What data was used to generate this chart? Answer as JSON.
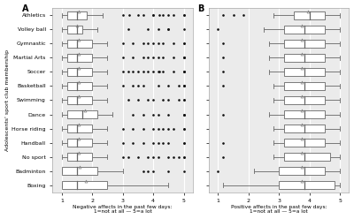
{
  "panel_A_label": "A",
  "panel_B_label": "B",
  "title_A": "Negative affects in the past few days:\n1=not at all — 5=a lot",
  "title_B": "Positive affects in the past few days:\n1=not at all — 5=a lot",
  "ylabel": "Adolescents' sport club membership",
  "xlim": [
    0.7,
    5.3
  ],
  "xticks": [
    1,
    2,
    3,
    4,
    5
  ],
  "background_color": "#ebebeb",
  "box_color": "white",
  "line_color": "#666666",
  "flier_color": "#111111",
  "mean_marker": "^",
  "mean_color": "#888888",
  "A_sports": [
    "Athletics",
    "Volley ball",
    "Gymnastic",
    "Martial Arts",
    "Soccer",
    "Basketball",
    "Swimming",
    "Dance",
    "Horse riding",
    "Handball",
    "No sport",
    "Badminton",
    "Boxing"
  ],
  "A_boxes": [
    {
      "med": 1.5,
      "q1": 1.17,
      "q3": 1.83,
      "whislo": 1.0,
      "whishi": 2.33,
      "mean": 1.55,
      "fliers": [
        3.0,
        3.5,
        3.67,
        4.0,
        4.0,
        4.33,
        4.5,
        4.67,
        5.0,
        5.0,
        4.2,
        3.2
      ]
    },
    {
      "med": 1.5,
      "q1": 1.17,
      "q3": 1.67,
      "whislo": 1.0,
      "whishi": 2.17,
      "mean": 1.5,
      "fliers": [
        3.17,
        3.83,
        4.17,
        4.5,
        5.0,
        4.5
      ]
    },
    {
      "med": 1.5,
      "q1": 1.17,
      "q3": 2.0,
      "whislo": 1.0,
      "whishi": 2.5,
      "mean": 1.55,
      "fliers": [
        3.0,
        3.33,
        3.67,
        4.0,
        4.17,
        4.33,
        4.67,
        5.0,
        5.0,
        3.83
      ]
    },
    {
      "med": 1.5,
      "q1": 1.17,
      "q3": 2.0,
      "whislo": 1.0,
      "whishi": 2.5,
      "mean": 1.55,
      "fliers": [
        3.0,
        3.33,
        3.67,
        4.0,
        4.17,
        4.33,
        4.67,
        5.0,
        5.0,
        3.83,
        5.0
      ]
    },
    {
      "med": 1.5,
      "q1": 1.17,
      "q3": 2.0,
      "whislo": 1.0,
      "whishi": 2.5,
      "mean": 1.55,
      "fliers": [
        3.0,
        3.17,
        3.33,
        3.5,
        3.67,
        4.0,
        4.17,
        4.33,
        4.67,
        5.0,
        5.0,
        3.83,
        5.0,
        4.2
      ]
    },
    {
      "med": 1.5,
      "q1": 1.17,
      "q3": 2.0,
      "whislo": 1.0,
      "whishi": 2.5,
      "mean": 1.55,
      "fliers": [
        3.0,
        3.33,
        3.67,
        4.17,
        4.5,
        5.0,
        5.0,
        4.83,
        5.0,
        3.5
      ]
    },
    {
      "med": 1.5,
      "q1": 1.17,
      "q3": 2.0,
      "whislo": 1.0,
      "whishi": 2.5,
      "mean": 1.55,
      "fliers": [
        3.17,
        3.5,
        3.83,
        4.0,
        4.33,
        4.5,
        5.0,
        5.0,
        4.83
      ]
    },
    {
      "med": 1.67,
      "q1": 1.17,
      "q3": 2.17,
      "whislo": 1.0,
      "whishi": 2.67,
      "mean": 1.75,
      "fliers": [
        3.33,
        4.0,
        4.5,
        5.0,
        3.67,
        4.17,
        5.0,
        5.0
      ]
    },
    {
      "med": 1.5,
      "q1": 1.17,
      "q3": 2.0,
      "whislo": 1.0,
      "whishi": 2.5,
      "mean": 1.55,
      "fliers": [
        3.0,
        3.33,
        3.67,
        4.0,
        4.17,
        4.33,
        4.67,
        5.0,
        5.0,
        4.5
      ]
    },
    {
      "med": 1.5,
      "q1": 1.17,
      "q3": 2.0,
      "whislo": 1.0,
      "whishi": 2.5,
      "mean": 1.55,
      "fliers": [
        3.0,
        3.33,
        3.67,
        4.0,
        4.17,
        4.33,
        5.0,
        4.5,
        5.0
      ]
    },
    {
      "med": 1.5,
      "q1": 1.17,
      "q3": 2.0,
      "whislo": 1.0,
      "whishi": 2.5,
      "mean": 1.55,
      "fliers": [
        3.0,
        3.17,
        3.5,
        3.83,
        4.0,
        4.17,
        4.5,
        4.67,
        5.0,
        5.0,
        4.83
      ]
    },
    {
      "med": 1.5,
      "q1": 1.0,
      "q3": 2.17,
      "whislo": 1.0,
      "whishi": 3.0,
      "mean": 1.6,
      "fliers": [
        3.67,
        4.0,
        4.5,
        5.0,
        3.83
      ]
    },
    {
      "med": 1.5,
      "q1": 1.0,
      "q3": 2.5,
      "whislo": 1.0,
      "whishi": 4.5,
      "mean": 1.8,
      "fliers": []
    }
  ],
  "B_sports": [
    "Athletics",
    "Soccer",
    "Volley ball",
    "Gymnastic",
    "Basketball",
    "Martial Arts",
    "Handball",
    "Swimming",
    "Boxing",
    "Dance",
    "Badminton",
    "Horse riding",
    "No sport"
  ],
  "B_boxes": [
    {
      "med": 4.0,
      "q1": 3.5,
      "q3": 4.5,
      "whislo": 2.83,
      "whishi": 5.0,
      "mean": 3.95,
      "fliers": [
        1.17,
        1.5,
        1.83
      ]
    },
    {
      "med": 3.83,
      "q1": 3.17,
      "q3": 4.5,
      "whislo": 2.5,
      "whishi": 5.0,
      "mean": 3.75,
      "fliers": [
        1.0
      ]
    },
    {
      "med": 3.83,
      "q1": 3.17,
      "q3": 4.5,
      "whislo": 2.67,
      "whishi": 5.0,
      "mean": 3.75,
      "fliers": [
        1.17
      ]
    },
    {
      "med": 3.83,
      "q1": 3.17,
      "q3": 4.5,
      "whislo": 2.67,
      "whishi": 5.0,
      "mean": 3.75,
      "fliers": [
        1.17
      ]
    },
    {
      "med": 3.83,
      "q1": 3.17,
      "q3": 4.5,
      "whislo": 2.67,
      "whishi": 5.0,
      "mean": 3.75,
      "fliers": [
        1.17
      ]
    },
    {
      "med": 3.83,
      "q1": 3.17,
      "q3": 4.5,
      "whislo": 2.83,
      "whishi": 5.0,
      "mean": 3.75,
      "fliers": [
        1.17
      ]
    },
    {
      "med": 3.83,
      "q1": 3.17,
      "q3": 4.5,
      "whislo": 2.83,
      "whishi": 5.0,
      "mean": 3.75,
      "fliers": []
    },
    {
      "med": 3.83,
      "q1": 3.17,
      "q3": 4.5,
      "whislo": 2.67,
      "whishi": 5.0,
      "mean": 3.75,
      "fliers": [
        1.17
      ]
    },
    {
      "med": 3.83,
      "q1": 3.17,
      "q3": 4.5,
      "whislo": 2.83,
      "whishi": 5.0,
      "mean": 3.75,
      "fliers": []
    },
    {
      "med": 3.83,
      "q1": 3.17,
      "q3": 4.5,
      "whislo": 2.83,
      "whishi": 5.0,
      "mean": 3.75,
      "fliers": [
        1.17
      ]
    },
    {
      "med": 3.83,
      "q1": 3.17,
      "q3": 4.67,
      "whislo": 2.83,
      "whishi": 5.0,
      "mean": 3.75,
      "fliers": [
        1.17
      ]
    },
    {
      "med": 3.83,
      "q1": 3.0,
      "q3": 4.5,
      "whislo": 2.17,
      "whishi": 5.0,
      "mean": 3.75,
      "fliers": [
        1.0
      ]
    },
    {
      "med": 3.83,
      "q1": 3.0,
      "q3": 4.83,
      "whislo": 1.17,
      "whishi": 5.0,
      "mean": 3.75,
      "fliers": []
    }
  ]
}
